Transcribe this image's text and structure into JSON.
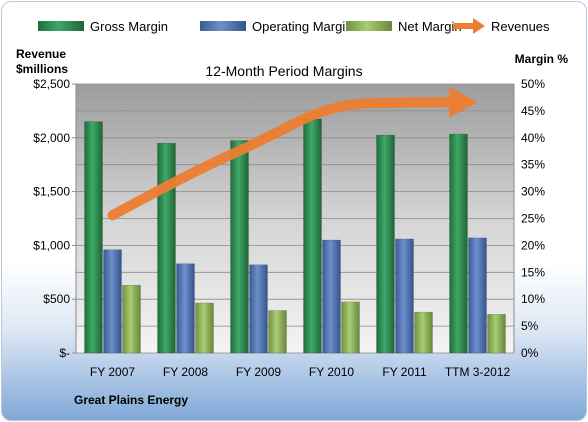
{
  "chart_data": {
    "type": "bar",
    "title": "12-Month Period Margins",
    "categories": [
      "FY 2007",
      "FY 2008",
      "FY 2009",
      "FY 2010",
      "FY 2011",
      "TTM 3-2012"
    ],
    "series": [
      {
        "name": "Gross Margin",
        "axis": "right",
        "color": "#2e8b4f",
        "values": [
          43,
          39,
          39.5,
          43.5,
          40.5,
          40.7
        ]
      },
      {
        "name": "Operating Margin",
        "axis": "right",
        "color": "#4f72b0",
        "values": [
          19.2,
          16.6,
          16.4,
          21,
          21.2,
          21.4
        ]
      },
      {
        "name": "Net Margin",
        "axis": "right",
        "color": "#8fb35a",
        "values": [
          12.6,
          9.3,
          7.9,
          9.5,
          7.6,
          7.2
        ]
      },
      {
        "name": "Revenues",
        "axis": "left",
        "type": "trend-arrow",
        "color": "#ed7d31",
        "values": [
          1280,
          1650,
          1960,
          2310,
          2330,
          2330
        ]
      }
    ],
    "y_left": {
      "label_line1": "Revenue",
      "label_line2": "$millions",
      "ylim": [
        0,
        2500
      ],
      "ticks": [
        "$-",
        "$500",
        "$1,000",
        "$1,500",
        "$2,000",
        "$2,500"
      ]
    },
    "y_right": {
      "label": "Margin %",
      "ylim": [
        0,
        50
      ],
      "ticks": [
        "0%",
        "5%",
        "10%",
        "15%",
        "20%",
        "25%",
        "30%",
        "35%",
        "40%",
        "45%",
        "50%"
      ]
    },
    "legend_position": "top",
    "grid": true
  },
  "footer": {
    "company": "Great Plains Energy"
  }
}
